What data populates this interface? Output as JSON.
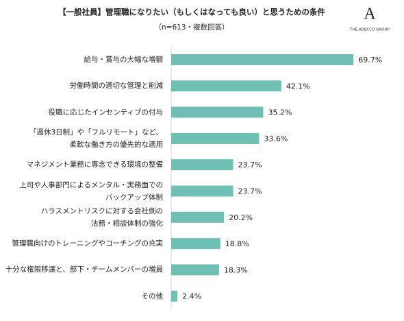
{
  "chart_data": {
    "type": "barh",
    "title": "【一般社員】管理職になりたい（もしくはなっても良い）と思うための条件",
    "subtitle": "（n=613・複数回答）",
    "logo": {
      "mark": "A",
      "text": "THE ADECCO GROUP"
    },
    "categories": [
      "給与・賞与の大幅な増額",
      "労働時間の適切な管理と削減",
      "役職に応じたインセンティブの付与",
      "「週休3日制」や「フルリモート」など、\n柔軟な働き方の優先的な適用",
      "マネジメント業務に専念できる環境の整備",
      "上司や人事部門によるメンタル・実務面での\nバックアップ体制",
      "ハラスメントリスクに対する会社側の\n法務・相談体制の強化",
      "管理職向けのトレーニングやコーチングの充実",
      "十分な権限移譲と、部下・チームメンバーの増員",
      "その他"
    ],
    "values": [
      69.7,
      42.1,
      35.2,
      33.6,
      23.7,
      23.7,
      20.2,
      18.8,
      18.3,
      2.4
    ],
    "value_labels": [
      "69.7%",
      "42.1%",
      "35.2%",
      "33.6%",
      "23.7%",
      "23.7%",
      "20.2%",
      "18.8%",
      "18.3%",
      "2.4%"
    ],
    "color": "#70bfb5"
  }
}
